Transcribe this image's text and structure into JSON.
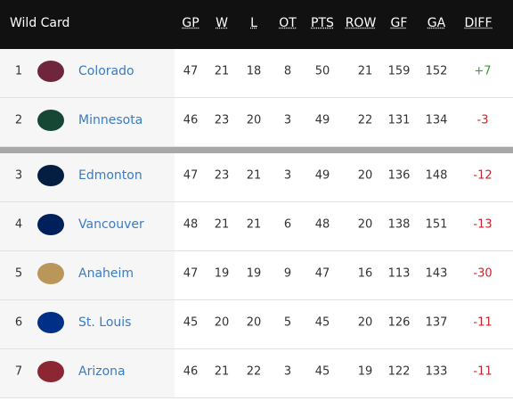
{
  "header": {
    "title": "Wild Card",
    "columns": [
      "GP",
      "W",
      "L",
      "OT",
      "PTS",
      "ROW",
      "GF",
      "GA",
      "DIFF"
    ]
  },
  "table": {
    "rows": [
      {
        "rank": 1,
        "team": "Colorado",
        "stats": [
          47,
          21,
          18,
          8,
          50,
          21,
          159,
          152
        ],
        "diff": "+7"
      },
      {
        "rank": 2,
        "team": "Minnesota",
        "stats": [
          46,
          23,
          20,
          3,
          49,
          22,
          131,
          134
        ],
        "diff": "-3"
      },
      {
        "rank": 3,
        "team": "Edmonton",
        "stats": [
          47,
          23,
          21,
          3,
          49,
          20,
          136,
          148
        ],
        "diff": "-12"
      },
      {
        "rank": 4,
        "team": "Vancouver",
        "stats": [
          48,
          21,
          21,
          6,
          48,
          20,
          138,
          151
        ],
        "diff": "-13"
      },
      {
        "rank": 5,
        "team": "Anaheim",
        "stats": [
          47,
          19,
          19,
          9,
          47,
          16,
          113,
          143
        ],
        "diff": "-30"
      },
      {
        "rank": 6,
        "team": "St. Louis",
        "stats": [
          45,
          20,
          20,
          5,
          45,
          20,
          126,
          137
        ],
        "diff": "-11"
      },
      {
        "rank": 7,
        "team": "Arizona",
        "stats": [
          46,
          21,
          22,
          3,
          45,
          19,
          122,
          133
        ],
        "diff": "-11"
      }
    ]
  }
}
